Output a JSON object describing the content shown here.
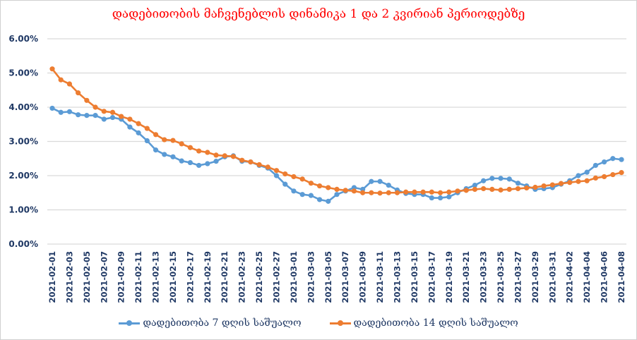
{
  "chart_data": {
    "type": "line",
    "title": "დადებითობის მაჩვენებლის დინამიკა 1 და 2 კვირიან პერიოდებზე",
    "xlabel": "",
    "ylabel": "",
    "ylim": [
      0,
      6
    ],
    "yticks": [
      "0.00%",
      "1.00%",
      "2.00%",
      "3.00%",
      "4.00%",
      "5.00%",
      "6.00%"
    ],
    "grid": true,
    "legend_position": "bottom",
    "x": [
      "2021-02-01",
      "2021-02-02",
      "2021-02-03",
      "2021-02-04",
      "2021-02-05",
      "2021-02-06",
      "2021-02-07",
      "2021-02-08",
      "2021-02-09",
      "2021-02-10",
      "2021-02-11",
      "2021-02-12",
      "2021-02-13",
      "2021-02-14",
      "2021-02-15",
      "2021-02-16",
      "2021-02-17",
      "2021-02-18",
      "2021-02-19",
      "2021-02-20",
      "2021-02-21",
      "2021-02-22",
      "2021-02-23",
      "2021-02-24",
      "2021-02-25",
      "2021-02-26",
      "2021-02-27",
      "2021-02-28",
      "2021-03-01",
      "2021-03-02",
      "2021-03-03",
      "2021-03-04",
      "2021-03-05",
      "2021-03-06",
      "2021-03-07",
      "2021-03-08",
      "2021-03-09",
      "2021-03-10",
      "2021-03-11",
      "2021-03-12",
      "2021-03-13",
      "2021-03-14",
      "2021-03-15",
      "2021-03-16",
      "2021-03-17",
      "2021-03-18",
      "2021-03-19",
      "2021-03-20",
      "2021-03-21",
      "2021-03-22",
      "2021-03-23",
      "2021-03-24",
      "2021-03-25",
      "2021-03-26",
      "2021-03-27",
      "2021-03-28",
      "2021-03-29",
      "2021-03-30",
      "2021-03-31",
      "2021-04-01",
      "2021-04-02",
      "2021-04-03",
      "2021-04-04",
      "2021-04-05",
      "2021-04-06",
      "2021-04-07",
      "2021-04-08"
    ],
    "series": [
      {
        "name": "დადებითობა 7 დღის საშუალო",
        "color": "#5b9bd5",
        "values": [
          3.97,
          3.85,
          3.87,
          3.78,
          3.76,
          3.76,
          3.65,
          3.7,
          3.65,
          3.42,
          3.25,
          3.02,
          2.75,
          2.62,
          2.55,
          2.43,
          2.38,
          2.3,
          2.35,
          2.42,
          2.55,
          2.58,
          2.42,
          2.4,
          2.3,
          2.22,
          2.0,
          1.75,
          1.55,
          1.45,
          1.42,
          1.3,
          1.25,
          1.45,
          1.55,
          1.65,
          1.6,
          1.83,
          1.83,
          1.72,
          1.58,
          1.48,
          1.45,
          1.45,
          1.35,
          1.35,
          1.38,
          1.5,
          1.62,
          1.72,
          1.85,
          1.92,
          1.92,
          1.9,
          1.78,
          1.7,
          1.6,
          1.62,
          1.65,
          1.75,
          1.85,
          2.0,
          2.1,
          2.3,
          2.4,
          2.5,
          2.47
        ]
      },
      {
        "name": "დადებითობა 14 დღის საშუალო",
        "color": "#ed7d31",
        "values": [
          5.12,
          4.8,
          4.68,
          4.42,
          4.2,
          4.0,
          3.88,
          3.85,
          3.73,
          3.65,
          3.52,
          3.38,
          3.2,
          3.05,
          3.03,
          2.93,
          2.82,
          2.72,
          2.68,
          2.6,
          2.58,
          2.56,
          2.45,
          2.4,
          2.32,
          2.25,
          2.15,
          2.05,
          1.97,
          1.9,
          1.78,
          1.7,
          1.65,
          1.6,
          1.57,
          1.55,
          1.5,
          1.5,
          1.49,
          1.5,
          1.5,
          1.52,
          1.52,
          1.52,
          1.52,
          1.5,
          1.52,
          1.55,
          1.57,
          1.6,
          1.62,
          1.6,
          1.58,
          1.6,
          1.62,
          1.64,
          1.66,
          1.7,
          1.73,
          1.77,
          1.8,
          1.83,
          1.85,
          1.93,
          1.97,
          2.03,
          2.09
        ]
      }
    ]
  }
}
